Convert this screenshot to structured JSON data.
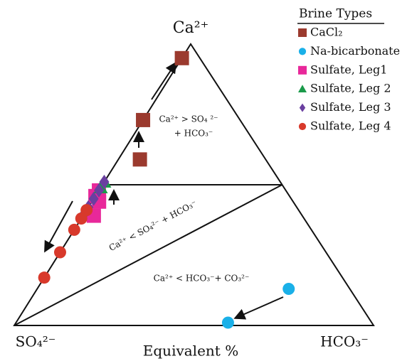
{
  "chart_data": {
    "type": "ternary",
    "apex_labels": {
      "top": "Ca²⁺",
      "left": "SO₄²⁻",
      "right": "HCO₃⁻"
    },
    "axis_label": "Equivalent %",
    "region_labels": [
      [
        "Ca²⁺ > SO₄ ²⁻",
        "+ HCO₃⁻"
      ],
      "Ca²⁺ < SO₄²⁻ + HCO₃⁻",
      "Ca²⁺ < HCO₃⁻+ CO₃²⁻"
    ],
    "legend_title": "Brine Types",
    "series": [
      {
        "name": "CaCl₂",
        "color": "#9b3a2e",
        "marker": "square",
        "ca": [
          95,
          73,
          59
        ],
        "so4": [
          5,
          27,
          35
        ],
        "hco3": [
          0,
          0,
          6
        ]
      },
      {
        "name": "Na-bicarbonate",
        "color": "#1ab0e8",
        "marker": "circle",
        "ca": [
          13,
          1
        ],
        "so4": [
          17,
          40
        ],
        "hco3": [
          70,
          59
        ]
      },
      {
        "name": "Sulfate, Leg1",
        "color": "#e8289a",
        "marker": "square",
        "ca": [
          48,
          46,
          44,
          39
        ],
        "so4": [
          52,
          54,
          54,
          58
        ],
        "hco3": [
          0,
          0,
          2,
          3
        ]
      },
      {
        "name": "Sulfate, Leg 2",
        "color": "#1a9a4a",
        "marker": "triangle",
        "ca": [
          51,
          49
        ],
        "so4": [
          49,
          51
        ],
        "hco3": [
          0,
          0
        ]
      },
      {
        "name": "Sulfate, Leg 3",
        "color": "#6a3fa0",
        "marker": "diamond",
        "ca": [
          51,
          48,
          45,
          42,
          40
        ],
        "so4": [
          49,
          52,
          55,
          58,
          60
        ],
        "hco3": [
          0,
          0,
          0,
          0,
          0
        ]
      },
      {
        "name": "Sulfate, Leg 4",
        "color": "#d8392b",
        "marker": "circle",
        "ca": [
          41,
          38,
          34,
          26,
          17
        ],
        "so4": [
          59,
          62,
          66,
          74,
          83
        ],
        "hco3": [
          0,
          0,
          0,
          0,
          0
        ]
      }
    ]
  }
}
